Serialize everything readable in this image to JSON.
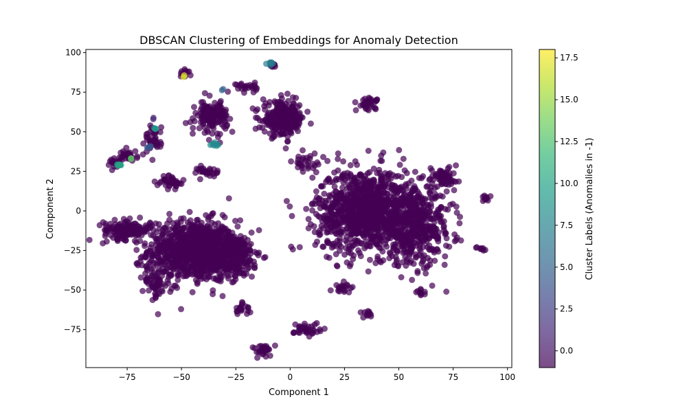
{
  "chart_data": {
    "type": "scatter",
    "title": "DBSCAN Clustering of Embeddings for Anomaly Detection",
    "xlabel": "Component 1",
    "ylabel": "Component 2",
    "xlim": [
      -94,
      102
    ],
    "ylim": [
      -99,
      102
    ],
    "xticks": [
      -75,
      -50,
      -25,
      0,
      25,
      50,
      75,
      100
    ],
    "yticks": [
      -75,
      -50,
      -25,
      0,
      25,
      50,
      75,
      100
    ],
    "xtick_labels": [
      "−75",
      "−50",
      "−25",
      "0",
      "25",
      "50",
      "75",
      "100"
    ],
    "ytick_labels": [
      "−75",
      "−50",
      "−25",
      "0",
      "25",
      "50",
      "75",
      "100"
    ],
    "grid": false,
    "colormap": "viridis",
    "alpha": 0.7,
    "colorbar": {
      "label": "Cluster Labels (Anomalies in -1)",
      "range": [
        -1,
        18
      ],
      "ticks": [
        0.0,
        2.5,
        5.0,
        7.5,
        10.0,
        12.5,
        15.0,
        17.5
      ],
      "tick_labels": [
        "0.0",
        "2.5",
        "5.0",
        "7.5",
        "10.0",
        "12.5",
        "15.0",
        "17.5"
      ],
      "colors": [
        "#440154",
        "#482878",
        "#3e4989",
        "#31688e",
        "#26828e",
        "#1f9e89",
        "#35b779",
        "#6ece58",
        "#b5de2b",
        "#fde725"
      ]
    },
    "point_groups": [
      {
        "cluster": -1,
        "shape": "ellipse",
        "center": [
          -45,
          -25
        ],
        "spread": [
          17,
          16
        ],
        "n": 900
      },
      {
        "cluster": -1,
        "shape": "ellipse",
        "center": [
          -28,
          -28
        ],
        "spread": [
          12,
          12
        ],
        "n": 300
      },
      {
        "cluster": -1,
        "shape": "ellipse",
        "center": [
          -75,
          -12
        ],
        "spread": [
          9,
          5
        ],
        "n": 150
      },
      {
        "cluster": -1,
        "shape": "ellipse",
        "center": [
          -62,
          -45
        ],
        "spread": [
          5,
          8
        ],
        "n": 60
      },
      {
        "cluster": -1,
        "shape": "ellipse",
        "center": [
          35,
          0
        ],
        "spread": [
          19,
          22
        ],
        "n": 1100
      },
      {
        "cluster": -1,
        "shape": "ellipse",
        "center": [
          58,
          -10
        ],
        "spread": [
          14,
          20
        ],
        "n": 450
      },
      {
        "cluster": -1,
        "shape": "ellipse",
        "center": [
          -3,
          58
        ],
        "spread": [
          8,
          9
        ],
        "n": 260
      },
      {
        "cluster": -1,
        "shape": "ellipse",
        "center": [
          -36,
          60
        ],
        "spread": [
          6,
          8
        ],
        "n": 160
      },
      {
        "cluster": -1,
        "shape": "ellipse",
        "center": [
          36,
          68
        ],
        "spread": [
          4,
          3
        ],
        "n": 35
      },
      {
        "cluster": -1,
        "shape": "ellipse",
        "center": [
          70,
          22
        ],
        "spread": [
          5,
          5
        ],
        "n": 60
      },
      {
        "cluster": -1,
        "shape": "ellipse",
        "center": [
          8,
          -75
        ],
        "spread": [
          5,
          4
        ],
        "n": 40
      },
      {
        "cluster": -1,
        "shape": "ellipse",
        "center": [
          -12,
          -88
        ],
        "spread": [
          4,
          3
        ],
        "n": 30
      },
      {
        "cluster": -1,
        "shape": "ellipse",
        "center": [
          -22,
          -62
        ],
        "spread": [
          3,
          3
        ],
        "n": 20
      },
      {
        "cluster": -1,
        "shape": "ellipse",
        "center": [
          -55,
          18
        ],
        "spread": [
          5,
          4
        ],
        "n": 40
      },
      {
        "cluster": -1,
        "shape": "ellipse",
        "center": [
          -38,
          25
        ],
        "spread": [
          4,
          3
        ],
        "n": 30
      },
      {
        "cluster": -1,
        "shape": "ellipse",
        "center": [
          -20,
          78
        ],
        "spread": [
          4,
          3
        ],
        "n": 25
      },
      {
        "cluster": -1,
        "shape": "ellipse",
        "center": [
          -75,
          35
        ],
        "spread": [
          4,
          3
        ],
        "n": 30
      },
      {
        "cluster": -1,
        "shape": "ellipse",
        "center": [
          -63,
          45
        ],
        "spread": [
          3,
          8
        ],
        "n": 40
      },
      {
        "cluster": -1,
        "shape": "ellipse",
        "center": [
          -48,
          87
        ],
        "spread": [
          3,
          2
        ],
        "n": 12
      },
      {
        "cluster": -1,
        "shape": "ellipse",
        "center": [
          -8,
          92
        ],
        "spread": [
          2,
          1.5
        ],
        "n": 10
      },
      {
        "cluster": -1,
        "shape": "ellipse",
        "center": [
          90,
          8
        ],
        "spread": [
          2,
          1.5
        ],
        "n": 10
      },
      {
        "cluster": -1,
        "shape": "ellipse",
        "center": [
          88,
          -24
        ],
        "spread": [
          2,
          1.5
        ],
        "n": 8
      },
      {
        "cluster": -1,
        "shape": "ellipse",
        "center": [
          60,
          -52
        ],
        "spread": [
          3,
          2
        ],
        "n": 10
      },
      {
        "cluster": -1,
        "shape": "ellipse",
        "center": [
          25,
          -48
        ],
        "spread": [
          4,
          3
        ],
        "n": 20
      },
      {
        "cluster": -1,
        "shape": "ellipse",
        "center": [
          36,
          -65
        ],
        "spread": [
          3,
          2
        ],
        "n": 12
      },
      {
        "cluster": -1,
        "shape": "ellipse",
        "center": [
          -82,
          30
        ],
        "spread": [
          3,
          3
        ],
        "n": 15
      },
      {
        "cluster": -1,
        "shape": "ellipse",
        "center": [
          8,
          30
        ],
        "spread": [
          6,
          5
        ],
        "n": 30
      },
      {
        "cluster": 4,
        "shape": "ellipse",
        "center": [
          -65,
          40
        ],
        "spread": [
          1,
          1
        ],
        "n": 5
      },
      {
        "cluster": 8,
        "shape": "ellipse",
        "center": [
          -35,
          42
        ],
        "spread": [
          2,
          1
        ],
        "n": 8
      },
      {
        "cluster": 7,
        "shape": "ellipse",
        "center": [
          -9,
          93
        ],
        "spread": [
          1.5,
          1
        ],
        "n": 6
      },
      {
        "cluster": 10,
        "shape": "ellipse",
        "center": [
          -79,
          29
        ],
        "spread": [
          1,
          0.6
        ],
        "n": 5
      },
      {
        "cluster": 9,
        "shape": "ellipse",
        "center": [
          -63,
          52
        ],
        "spread": [
          1,
          0.6
        ],
        "n": 4
      },
      {
        "cluster": 17,
        "shape": "ellipse",
        "center": [
          -49,
          85
        ],
        "spread": [
          0.6,
          0.6
        ],
        "n": 2
      },
      {
        "cluster": 13,
        "shape": "ellipse",
        "center": [
          -73,
          33
        ],
        "spread": [
          0.8,
          0.6
        ],
        "n": 2
      },
      {
        "cluster": 5,
        "shape": "ellipse",
        "center": [
          -31,
          77
        ],
        "spread": [
          0.6,
          0.6
        ],
        "n": 2
      },
      {
        "cluster": 1,
        "shape": "ellipse",
        "center": [
          -63,
          58
        ],
        "spread": [
          0.6,
          0.6
        ],
        "n": 2
      }
    ]
  }
}
